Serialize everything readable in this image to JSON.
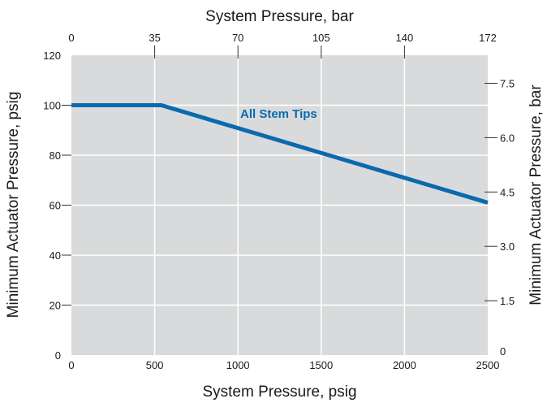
{
  "chart_data": {
    "type": "line",
    "title": "",
    "xlabel": "System Pressure, psig",
    "ylabel": "Minimum Actuator Pressure, psig",
    "x2label": "System Pressure, bar",
    "y2label": "Minimum Actuator Pressure, bar",
    "xlim": [
      0,
      2500
    ],
    "ylim": [
      0,
      120
    ],
    "x_ticks": [
      0,
      500,
      1000,
      1500,
      2000,
      2500
    ],
    "y_ticks": [
      0,
      20,
      40,
      60,
      80,
      100,
      120
    ],
    "x2_ticks": [
      "0",
      "35",
      "70",
      "105",
      "140",
      "172"
    ],
    "y2_ticks": [
      "0",
      "1.5",
      "3.0",
      "4.5",
      "6.0",
      "7.5"
    ],
    "grid": true,
    "series": [
      {
        "name": "All Stem Tips",
        "x": [
          0,
          540,
          2500
        ],
        "y": [
          100,
          100,
          61
        ]
      }
    ],
    "colors": {
      "plot_background": "#d9dadc",
      "grid": "#ffffff",
      "line": "#0a6aad",
      "annotation": "#0a6aad"
    }
  }
}
